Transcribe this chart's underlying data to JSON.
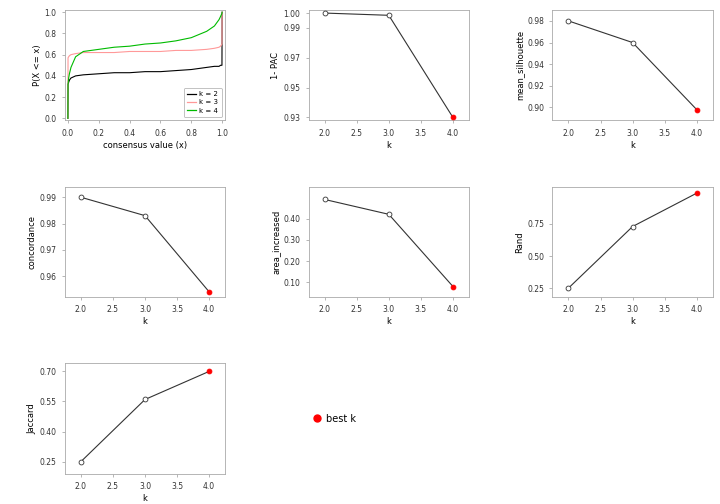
{
  "ecdf": {
    "k2": {
      "x": [
        0.0,
        0.001,
        0.005,
        0.01,
        0.02,
        0.05,
        0.1,
        0.2,
        0.3,
        0.4,
        0.5,
        0.6,
        0.7,
        0.8,
        0.9,
        0.95,
        0.98,
        0.99,
        0.999,
        1.0
      ],
      "y": [
        0.0,
        0.32,
        0.34,
        0.36,
        0.38,
        0.4,
        0.41,
        0.42,
        0.43,
        0.43,
        0.44,
        0.44,
        0.45,
        0.46,
        0.48,
        0.49,
        0.49,
        0.5,
        0.5,
        1.0
      ],
      "color": "#000000"
    },
    "k3": {
      "x": [
        0.0,
        0.001,
        0.005,
        0.01,
        0.02,
        0.05,
        0.1,
        0.2,
        0.3,
        0.4,
        0.5,
        0.6,
        0.7,
        0.8,
        0.9,
        0.95,
        0.98,
        0.99,
        0.999,
        1.0
      ],
      "y": [
        0.0,
        0.57,
        0.58,
        0.59,
        0.6,
        0.61,
        0.62,
        0.62,
        0.62,
        0.63,
        0.63,
        0.63,
        0.64,
        0.64,
        0.65,
        0.66,
        0.67,
        0.68,
        0.7,
        1.0
      ],
      "color": "#FF9999"
    },
    "k4": {
      "x": [
        0.0,
        0.001,
        0.005,
        0.01,
        0.02,
        0.05,
        0.1,
        0.2,
        0.3,
        0.4,
        0.5,
        0.6,
        0.7,
        0.8,
        0.9,
        0.95,
        0.98,
        0.99,
        0.999,
        1.0
      ],
      "y": [
        0.0,
        0.32,
        0.38,
        0.42,
        0.48,
        0.58,
        0.63,
        0.65,
        0.67,
        0.68,
        0.7,
        0.71,
        0.73,
        0.76,
        0.82,
        0.87,
        0.93,
        0.96,
        0.99,
        1.0
      ],
      "color": "#00BB00"
    }
  },
  "pac": {
    "k": [
      2,
      3,
      4
    ],
    "vals": [
      1.0,
      0.9985,
      0.93
    ],
    "best_k": 4,
    "ylabel": "1- PAC",
    "yticks": [
      0.93,
      0.95,
      0.97,
      0.99,
      1.0
    ],
    "ylim": [
      0.928,
      1.002
    ]
  },
  "silhouette": {
    "k": [
      2,
      3,
      4
    ],
    "vals": [
      0.98,
      0.96,
      0.898
    ],
    "best_k": 4,
    "ylabel": "mean_silhouette",
    "yticks": [
      0.9,
      0.92,
      0.94,
      0.96,
      0.98
    ],
    "ylim": [
      0.888,
      0.99
    ]
  },
  "concordance": {
    "k": [
      2,
      3,
      4
    ],
    "vals": [
      0.99,
      0.983,
      0.954
    ],
    "best_k": 4,
    "ylabel": "concordance",
    "yticks": [
      0.96,
      0.97,
      0.98,
      0.99
    ],
    "ylim": [
      0.952,
      0.994
    ]
  },
  "area_increased": {
    "k": [
      2,
      3,
      4
    ],
    "vals": [
      0.49,
      0.42,
      0.08
    ],
    "best_k": 4,
    "ylabel": "area_increased",
    "yticks": [
      0.1,
      0.2,
      0.3,
      0.4
    ],
    "ylim": [
      0.03,
      0.55
    ]
  },
  "rand": {
    "k": [
      2,
      3,
      4
    ],
    "vals": [
      0.25,
      0.73,
      0.99
    ],
    "best_k": 4,
    "ylabel": "Rand",
    "yticks": [
      0.25,
      0.5,
      0.75
    ],
    "ylim": [
      0.18,
      1.04
    ]
  },
  "jaccard": {
    "k": [
      2,
      3,
      4
    ],
    "vals": [
      0.25,
      0.56,
      0.7
    ],
    "best_k": 4,
    "ylabel": "Jaccard",
    "yticks": [
      0.25,
      0.4,
      0.55,
      0.7
    ],
    "ylim": [
      0.19,
      0.74
    ]
  },
  "bg_color": "#FFFFFF",
  "line_color": "#333333",
  "open_dot_color": "#FFFFFF",
  "best_dot_color": "#FF0000",
  "spine_color": "#AAAAAA",
  "tick_color": "#333333"
}
